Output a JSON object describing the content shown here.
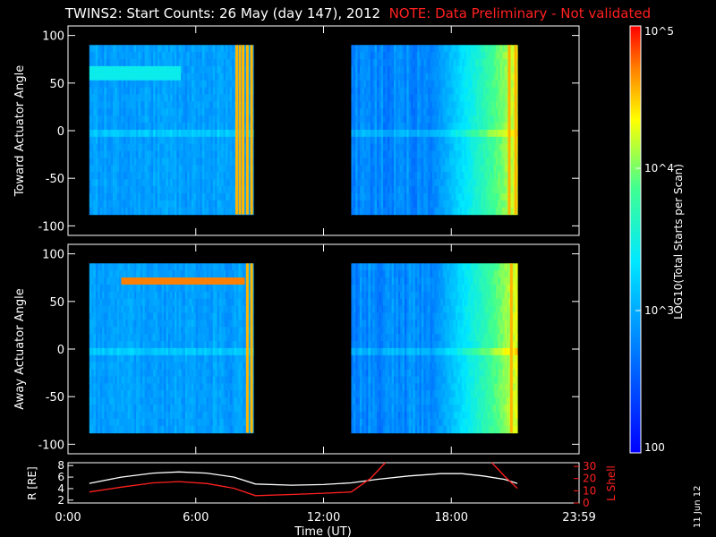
{
  "title": {
    "main": "TWINS2: Start Counts: 26 May (day 147), 2012",
    "note": "NOTE: Data Preliminary - Not validated"
  },
  "date_stamp": "11 Jun 12",
  "colors": {
    "background": "#000000",
    "axes": "#ffffff",
    "note": "#ff2020",
    "lshell": "#ff2020",
    "radius": "#ffffff"
  },
  "chart_data": [
    {
      "type": "heatmap",
      "name": "toward",
      "ylabel": "Toward Actuator Angle",
      "ylim": [
        -110,
        110
      ],
      "yticks": [
        100,
        50,
        0,
        -50,
        -100
      ],
      "xlim": [
        0,
        24
      ],
      "angle_range": [
        -88,
        90
      ],
      "coverage": [
        [
          1.0,
          8.7
        ],
        [
          13.3,
          21.1
        ]
      ],
      "band": {
        "start": 1.0,
        "end": 5.2,
        "angle": 60
      },
      "spikes_hours": [
        7.9,
        8.05,
        8.2,
        8.4,
        8.6,
        20.7,
        21.0
      ]
    },
    {
      "type": "heatmap",
      "name": "away",
      "ylabel": "Away Actuator Angle",
      "ylim": [
        -110,
        110
      ],
      "yticks": [
        100,
        50,
        0,
        -50,
        -100
      ],
      "xlim": [
        0,
        24
      ],
      "angle_range": [
        -88,
        90
      ],
      "coverage": [
        [
          1.0,
          8.7
        ],
        [
          13.3,
          21.1
        ]
      ],
      "band": {
        "start": 2.5,
        "end": 8.2,
        "angle": 72
      },
      "spikes_hours": [
        8.4,
        8.6,
        20.8
      ]
    },
    {
      "type": "line",
      "name": "orbit",
      "xlabel": "Time (UT)",
      "xticks": [
        "0:00",
        "6:00",
        "12:00",
        "18:00",
        "23:59"
      ],
      "xtick_hours": [
        0,
        6,
        12,
        18,
        24
      ],
      "left_axis": {
        "label": "R [RE]",
        "ticks": [
          8,
          6,
          4,
          2
        ],
        "range": [
          1.5,
          8.5
        ]
      },
      "right_axis": {
        "label": "L Shell",
        "ticks": [
          30,
          20,
          10,
          0
        ],
        "range": [
          0,
          33
        ]
      },
      "series": [
        {
          "axis": "left",
          "x": [
            1.0,
            2.5,
            4.0,
            5.2,
            6.5,
            7.8,
            8.8,
            10.5,
            12.0,
            13.3,
            14.5,
            16.0,
            17.5,
            18.5,
            19.5,
            20.5,
            21.1
          ],
          "y": [
            4.9,
            6.0,
            6.7,
            6.9,
            6.7,
            6.0,
            4.8,
            4.6,
            4.7,
            5.0,
            5.6,
            6.2,
            6.6,
            6.6,
            6.2,
            5.6,
            4.9
          ]
        },
        {
          "axis": "right",
          "x": [
            1.0,
            2.5,
            4.0,
            5.2,
            6.5,
            7.8,
            8.8,
            10.5,
            12.0,
            13.3,
            14.2,
            14.9
          ],
          "y": [
            9,
            13,
            16.5,
            17.5,
            16,
            12,
            6,
            7,
            8,
            9,
            20,
            33
          ]
        },
        {
          "axis": "right",
          "x": [
            19.9,
            20.5,
            21.1
          ],
          "y": [
            33,
            22,
            12
          ]
        }
      ]
    }
  ],
  "colorbar": {
    "label": "LOG10(Total Starts per Scan)",
    "tick_labels": [
      "10^5",
      "10^4",
      "10^3",
      "100"
    ],
    "log_range": [
      2,
      5
    ],
    "colormap": "rainbow"
  }
}
